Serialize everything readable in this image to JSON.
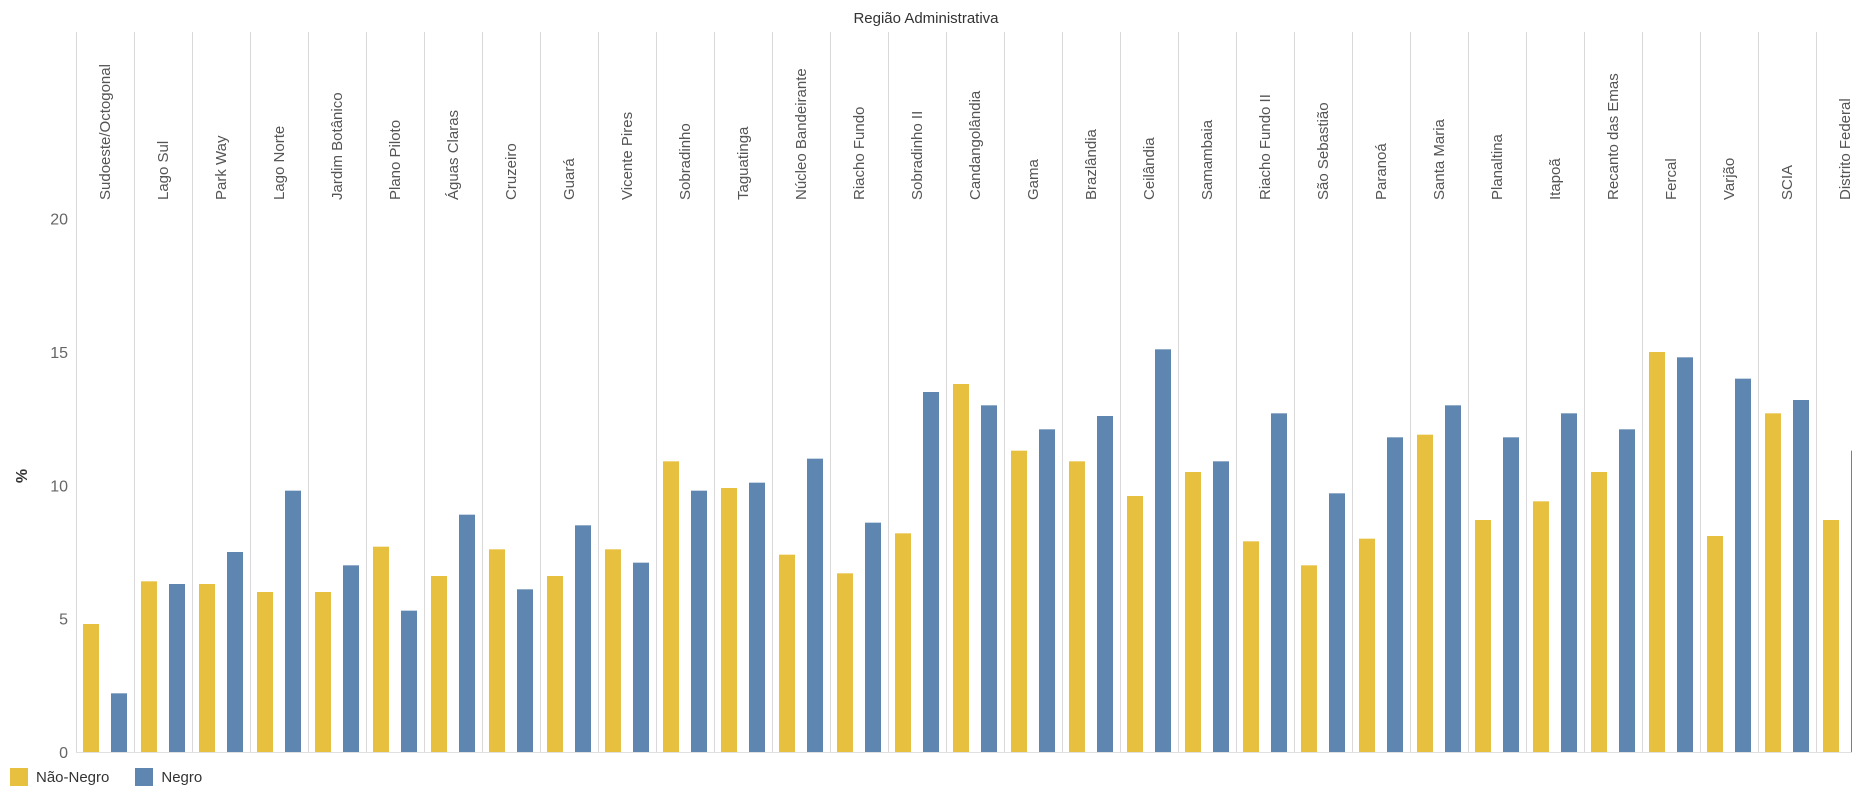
{
  "chart_data": {
    "type": "bar",
    "title": "Região Administrativa",
    "xlabel": "",
    "ylabel": "%",
    "ylim": [
      0,
      27
    ],
    "yticks": [
      0,
      5,
      10,
      15,
      20
    ],
    "grid": false,
    "legend_position": "bottom-left",
    "categories": [
      "Sudoeste/Octogonal",
      "Lago Sul",
      "Park Way",
      "Lago Norte",
      "Jardim Botânico",
      "Plano Piloto",
      "Águas Claras",
      "Cruzeiro",
      "Guará",
      "Vicente Pires",
      "Sobradinho",
      "Taguatinga",
      "Núcleo Bandeirante",
      "Riacho Fundo",
      "Sobradinho II",
      "Candangolândia",
      "Gama",
      "Brazlândia",
      "Ceilândia",
      "Samambaia",
      "Riacho Fundo II",
      "São Sebastião",
      "Paranoá",
      "Santa Maria",
      "Planaltina",
      "Itapoã",
      "Recanto das Emas",
      "Fercal",
      "Varjão",
      "SCIA",
      "Distrito Federal"
    ],
    "series": [
      {
        "name": "Não-Negro",
        "color": "#E8C040",
        "values": [
          4.8,
          6.4,
          6.3,
          6.0,
          6.0,
          7.7,
          6.6,
          7.6,
          6.6,
          7.6,
          10.9,
          9.9,
          7.4,
          6.7,
          8.2,
          13.8,
          11.3,
          10.9,
          9.6,
          10.5,
          7.9,
          7.0,
          8.0,
          11.9,
          8.7,
          9.4,
          10.5,
          15.0,
          8.1,
          12.7,
          8.7
        ]
      },
      {
        "name": "Negro",
        "color": "#5E86B0",
        "values": [
          2.2,
          6.3,
          7.5,
          9.8,
          7.0,
          5.3,
          8.9,
          6.1,
          8.5,
          7.1,
          9.8,
          10.1,
          11.0,
          8.6,
          13.5,
          13.0,
          12.1,
          12.6,
          15.1,
          10.9,
          12.7,
          9.7,
          11.8,
          13.0,
          11.8,
          12.7,
          12.1,
          14.8,
          14.0,
          13.2,
          11.3
        ]
      }
    ]
  }
}
